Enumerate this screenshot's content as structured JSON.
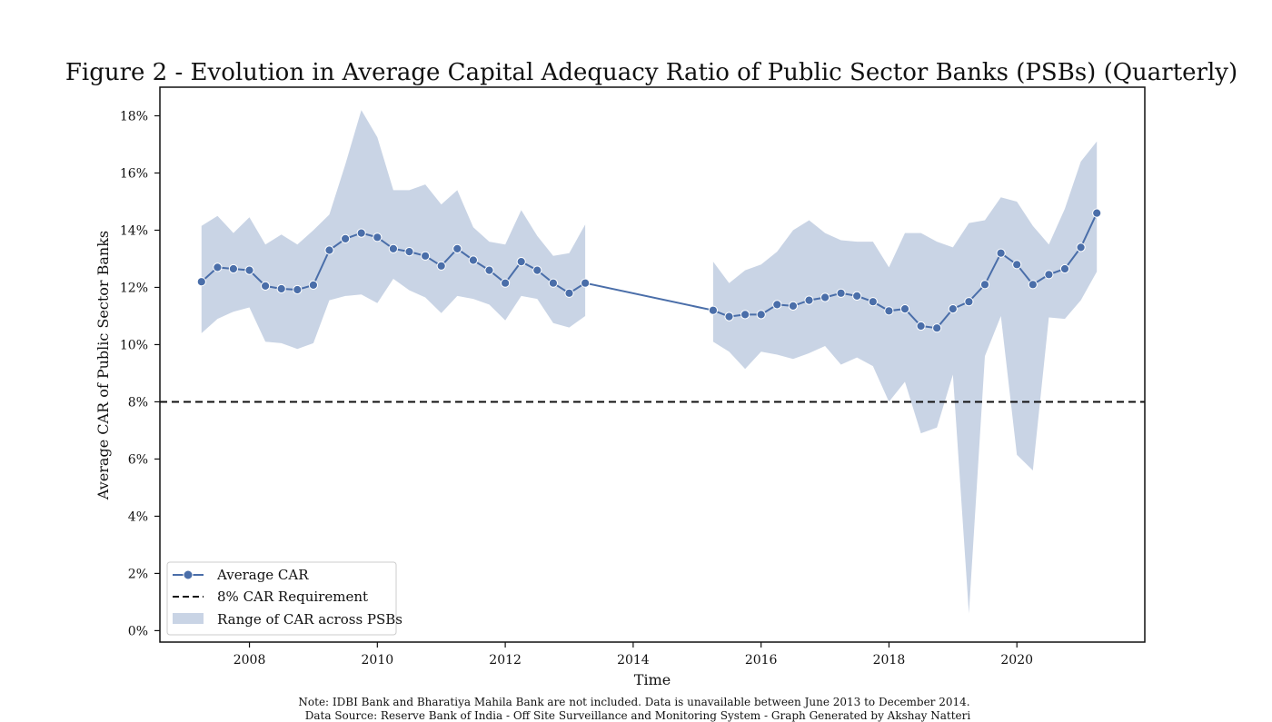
{
  "chart_data": {
    "type": "line",
    "title": "Figure 2 - Evolution in Average Capital Adequacy Ratio of Public Sector Banks (PSBs) (Quarterly)",
    "xlabel": "Time",
    "ylabel": "Average CAR of Public Sector Banks",
    "xlim": [
      2006.6,
      2022.0
    ],
    "ylim": [
      -0.4,
      19.0
    ],
    "x_ticks": [
      2008,
      2010,
      2012,
      2014,
      2016,
      2018,
      2020
    ],
    "x_tick_labels": [
      "2008",
      "2010",
      "2012",
      "2014",
      "2016",
      "2018",
      "2020"
    ],
    "y_ticks": [
      0,
      2,
      4,
      6,
      8,
      10,
      12,
      14,
      16,
      18
    ],
    "y_tick_labels": [
      "0%",
      "2%",
      "4%",
      "6%",
      "8%",
      "10%",
      "12%",
      "14%",
      "16%",
      "18%"
    ],
    "grid": false,
    "legend_position": "bottom-left",
    "requirement_line": {
      "name": "8% CAR Requirement",
      "value": 8.0,
      "color": "#111111",
      "style": "dashed"
    },
    "series": [
      {
        "name": "Average CAR",
        "color": "#4a6ea9",
        "x": [
          2007.25,
          2007.5,
          2007.75,
          2008.0,
          2008.25,
          2008.5,
          2008.75,
          2009.0,
          2009.25,
          2009.5,
          2009.75,
          2010.0,
          2010.25,
          2010.5,
          2010.75,
          2011.0,
          2011.25,
          2011.5,
          2011.75,
          2012.0,
          2012.25,
          2012.5,
          2012.75,
          2013.0,
          2013.25,
          2015.25,
          2015.5,
          2015.75,
          2016.0,
          2016.25,
          2016.5,
          2016.75,
          2017.0,
          2017.25,
          2017.5,
          2017.75,
          2018.0,
          2018.25,
          2018.5,
          2018.75,
          2019.0,
          2019.25,
          2019.5,
          2019.75,
          2020.0,
          2020.25,
          2020.5,
          2020.75,
          2021.0,
          2021.25
        ],
        "y": [
          12.2,
          12.7,
          12.65,
          12.6,
          12.05,
          11.95,
          11.92,
          12.08,
          13.3,
          13.7,
          13.9,
          13.75,
          13.35,
          13.25,
          13.1,
          12.75,
          13.35,
          12.95,
          12.6,
          12.15,
          12.9,
          12.6,
          12.15,
          11.8,
          12.15,
          11.2,
          10.98,
          11.05,
          11.05,
          11.4,
          11.35,
          11.55,
          11.65,
          11.8,
          11.7,
          11.5,
          11.18,
          11.25,
          10.65,
          10.58,
          11.25,
          11.5,
          12.1,
          13.2,
          12.8,
          12.1,
          12.45,
          12.65,
          13.4,
          14.6
        ]
      }
    ],
    "range_band": {
      "name": "Range of CAR across PSBs",
      "color": "#c9d4e5",
      "segments": [
        {
          "x": [
            2007.25,
            2007.5,
            2007.75,
            2008.0,
            2008.25,
            2008.5,
            2008.75,
            2009.0,
            2009.25,
            2009.5,
            2009.75,
            2010.0,
            2010.25,
            2010.5,
            2010.75,
            2011.0,
            2011.25,
            2011.5,
            2011.75,
            2012.0,
            2012.25,
            2012.5,
            2012.75,
            2013.0,
            2013.25
          ],
          "lower": [
            10.4,
            10.9,
            11.15,
            11.3,
            10.1,
            10.05,
            9.85,
            10.05,
            11.55,
            11.7,
            11.75,
            11.45,
            12.3,
            11.9,
            11.65,
            11.1,
            11.7,
            11.6,
            11.4,
            10.85,
            11.7,
            11.6,
            10.75,
            10.6,
            11.0
          ],
          "upper": [
            14.15,
            14.5,
            13.9,
            14.45,
            13.5,
            13.85,
            13.5,
            14.0,
            14.55,
            16.3,
            18.2,
            17.25,
            15.4,
            15.4,
            15.6,
            14.9,
            15.4,
            14.1,
            13.6,
            13.5,
            14.7,
            13.8,
            13.1,
            13.2,
            14.2
          ]
        },
        {
          "x": [
            2015.25,
            2015.5,
            2015.75,
            2016.0,
            2016.25,
            2016.5,
            2016.75,
            2017.0,
            2017.25,
            2017.5,
            2017.75,
            2018.0,
            2018.25,
            2018.5,
            2018.75,
            2019.0,
            2019.25,
            2019.5,
            2019.75,
            2020.0,
            2020.25,
            2020.5,
            2020.75,
            2021.0,
            2021.25
          ],
          "lower": [
            10.1,
            9.75,
            9.15,
            9.75,
            9.65,
            9.5,
            9.7,
            9.95,
            9.3,
            9.55,
            9.25,
            8.0,
            8.7,
            6.9,
            7.1,
            8.95,
            0.6,
            9.6,
            11.0,
            6.15,
            5.6,
            10.95,
            10.9,
            11.55,
            12.55
          ],
          "upper": [
            12.9,
            12.15,
            12.6,
            12.8,
            13.25,
            14.0,
            14.35,
            13.9,
            13.65,
            13.6,
            13.6,
            12.7,
            13.9,
            13.9,
            13.6,
            13.4,
            14.25,
            14.35,
            15.15,
            15.0,
            14.15,
            13.5,
            14.75,
            16.4,
            17.1
          ]
        }
      ]
    }
  },
  "legend": {
    "items": [
      {
        "label": "Average CAR"
      },
      {
        "label": "8% CAR Requirement"
      },
      {
        "label": "Range of CAR across PSBs"
      }
    ]
  },
  "notes": {
    "line1": "Note: IDBI Bank and Bharatiya Mahila Bank are not included. Data is unavailable between June 2013 to December 2014.",
    "line2": "Data Source: Reserve Bank of India - Off Site Surveillance and Monitoring System - Graph Generated by Akshay Natteri"
  }
}
